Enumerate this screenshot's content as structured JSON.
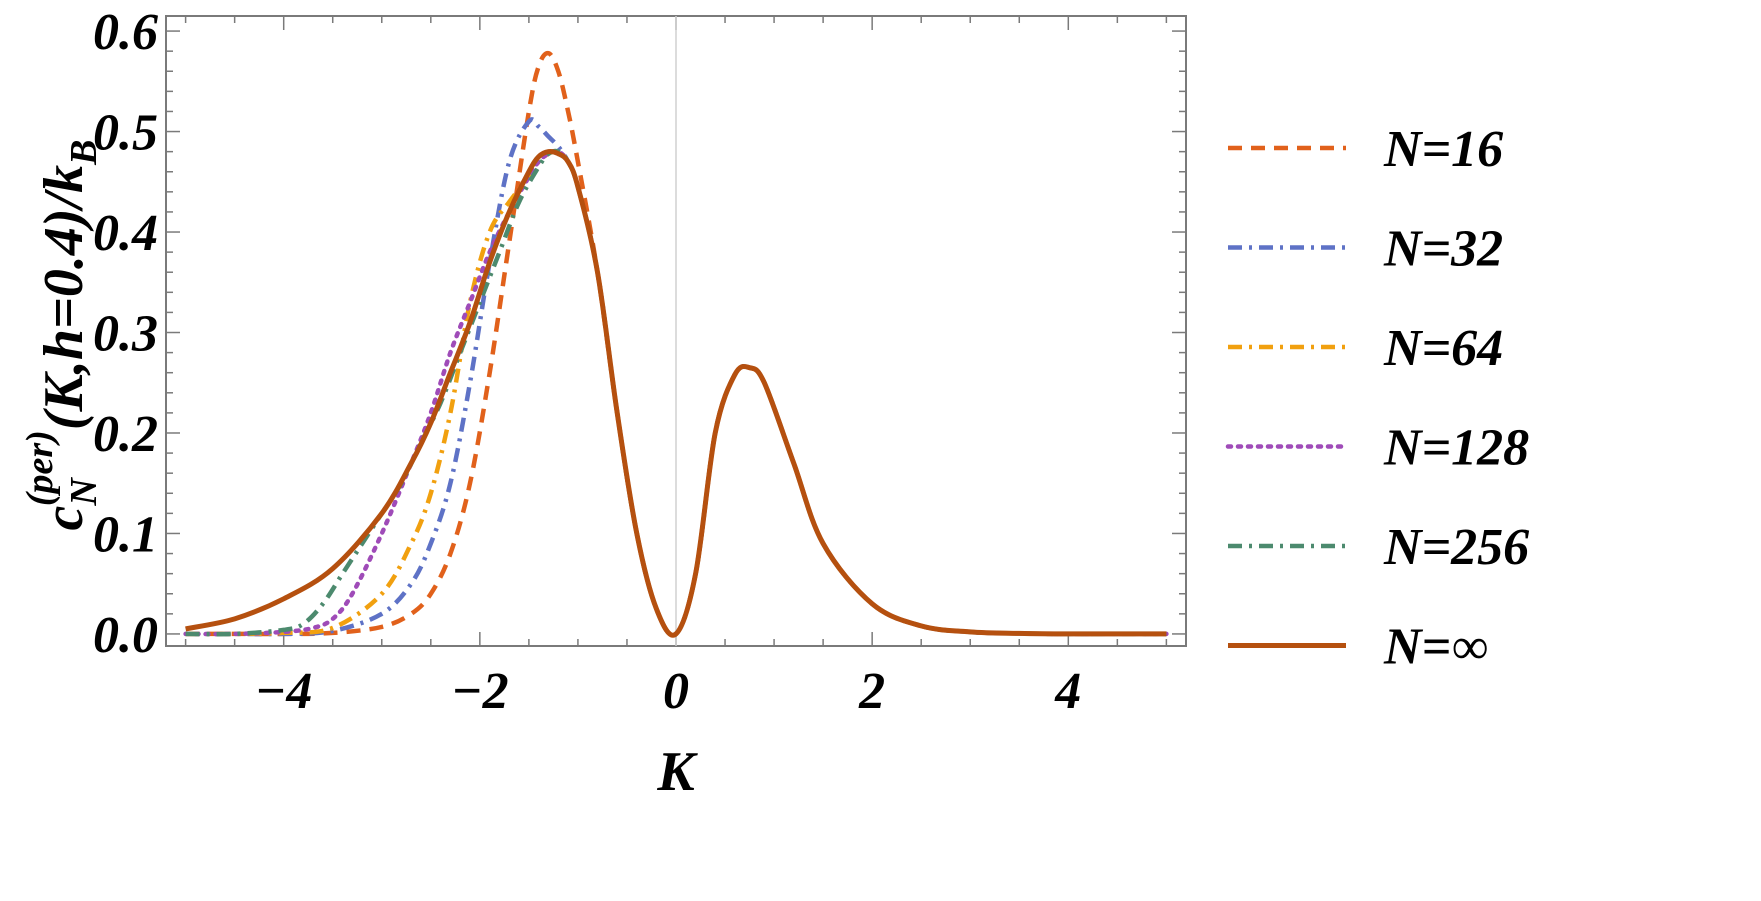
{
  "chart_data": {
    "type": "line",
    "title": "",
    "xlabel": "K",
    "ylabel": "c_N^(per)(K,h=0.4)/k_B",
    "ylabel_parts": {
      "base": "c",
      "sub": "N",
      "sup": "(per)",
      "rest": "(K,h=0.4)/k",
      "rest_sub": "B"
    },
    "xlim": [
      -5.2,
      5.2
    ],
    "ylim": [
      -0.012,
      0.615
    ],
    "xticks": [
      -4,
      -2,
      0,
      2,
      4
    ],
    "xtick_labels": [
      "−4",
      "−2",
      "0",
      "2",
      "4"
    ],
    "yticks": [
      0.0,
      0.1,
      0.2,
      0.3,
      0.4,
      0.5,
      0.6
    ],
    "ytick_labels": [
      "0.0",
      "0.1",
      "0.2",
      "0.3",
      "0.4",
      "0.5",
      "0.6"
    ],
    "grid": false,
    "legend_position": "right",
    "series": [
      {
        "name": "N=16",
        "color": "#E1611B",
        "dash": "dashed",
        "x": [
          -5.0,
          -4.5,
          -4.0,
          -3.5,
          -3.0,
          -2.7,
          -2.5,
          -2.3,
          -2.1,
          -1.9,
          -1.7,
          -1.5,
          -1.4,
          -1.3,
          -1.2,
          -1.1,
          -1.0,
          -0.8,
          -0.6,
          -0.4,
          -0.2,
          0.0,
          0.2,
          0.4,
          0.6,
          0.75,
          0.9,
          1.2,
          1.5,
          2.0,
          2.5,
          3.0,
          3.5,
          4.0,
          4.5,
          5.0
        ],
        "y": [
          0.0,
          0.0,
          0.0,
          0.001,
          0.007,
          0.02,
          0.04,
          0.08,
          0.15,
          0.26,
          0.39,
          0.52,
          0.565,
          0.578,
          0.56,
          0.52,
          0.47,
          0.36,
          0.22,
          0.1,
          0.025,
          0.0,
          0.06,
          0.2,
          0.258,
          0.265,
          0.25,
          0.17,
          0.09,
          0.03,
          0.008,
          0.002,
          0.0005,
          0.0,
          0.0,
          0.0
        ]
      },
      {
        "name": "N=32",
        "color": "#5E72C6",
        "dash": "dashdot",
        "x": [
          -5.0,
          -4.5,
          -4.0,
          -3.5,
          -3.0,
          -2.7,
          -2.5,
          -2.3,
          -2.1,
          -1.9,
          -1.7,
          -1.5,
          -1.4,
          -1.3,
          -1.2,
          -1.1,
          -1.0,
          -0.8,
          -0.6,
          -0.4,
          -0.2,
          0.0,
          0.2,
          0.4,
          0.6,
          0.75,
          0.9,
          1.2,
          1.5,
          2.0,
          2.5,
          3.0,
          3.5,
          4.0,
          4.5,
          5.0
        ],
        "y": [
          0.0,
          0.0,
          0.0,
          0.003,
          0.02,
          0.05,
          0.09,
          0.15,
          0.25,
          0.37,
          0.47,
          0.51,
          0.505,
          0.495,
          0.485,
          0.47,
          0.445,
          0.36,
          0.22,
          0.1,
          0.025,
          0.0,
          0.06,
          0.2,
          0.258,
          0.265,
          0.25,
          0.17,
          0.09,
          0.03,
          0.008,
          0.002,
          0.0005,
          0.0,
          0.0,
          0.0
        ]
      },
      {
        "name": "N=64",
        "color": "#F1A00F",
        "dash": "dashdot",
        "x": [
          -5.0,
          -4.5,
          -4.0,
          -3.5,
          -3.0,
          -2.7,
          -2.5,
          -2.3,
          -2.1,
          -1.9,
          -1.7,
          -1.5,
          -1.4,
          -1.3,
          -1.2,
          -1.1,
          -1.0,
          -0.8,
          -0.6,
          -0.4,
          -0.2,
          0.0,
          0.2,
          0.4,
          0.6,
          0.75,
          0.9,
          1.2,
          1.5,
          2.0,
          2.5,
          3.0,
          3.5,
          4.0,
          4.5,
          5.0
        ],
        "y": [
          0.0,
          0.0,
          0.001,
          0.006,
          0.04,
          0.09,
          0.14,
          0.22,
          0.33,
          0.4,
          0.43,
          0.455,
          0.47,
          0.478,
          0.48,
          0.47,
          0.445,
          0.36,
          0.22,
          0.1,
          0.025,
          0.0,
          0.06,
          0.2,
          0.258,
          0.265,
          0.25,
          0.17,
          0.09,
          0.03,
          0.008,
          0.002,
          0.0005,
          0.0,
          0.0,
          0.0
        ]
      },
      {
        "name": "N=128",
        "color": "#9F4BB8",
        "dash": "dotted",
        "x": [
          -5.0,
          -4.5,
          -4.0,
          -3.7,
          -3.5,
          -3.3,
          -3.0,
          -2.7,
          -2.5,
          -2.3,
          -2.1,
          -1.9,
          -1.7,
          -1.5,
          -1.4,
          -1.3,
          -1.2,
          -1.1,
          -1.0,
          -0.8,
          -0.6,
          -0.4,
          -0.2,
          0.0,
          0.2,
          0.4,
          0.6,
          0.75,
          0.9,
          1.2,
          1.5,
          2.0,
          2.5,
          3.0,
          3.5,
          4.0,
          4.5,
          5.0
        ],
        "y": [
          0.0,
          0.0,
          0.002,
          0.006,
          0.015,
          0.04,
          0.1,
          0.17,
          0.22,
          0.28,
          0.33,
          0.38,
          0.42,
          0.455,
          0.47,
          0.478,
          0.48,
          0.47,
          0.445,
          0.36,
          0.22,
          0.1,
          0.025,
          0.0,
          0.06,
          0.2,
          0.258,
          0.265,
          0.25,
          0.17,
          0.09,
          0.03,
          0.008,
          0.002,
          0.0005,
          0.0,
          0.0,
          0.0
        ]
      },
      {
        "name": "N=256",
        "color": "#4C8A6E",
        "dash": "dashdot",
        "x": [
          -5.0,
          -4.5,
          -4.0,
          -3.8,
          -3.6,
          -3.4,
          -3.2,
          -3.0,
          -2.8,
          -2.6,
          -2.4,
          -2.2,
          -2.0,
          -1.8,
          -1.6,
          -1.4,
          -1.3,
          -1.2,
          -1.1,
          -1.0,
          -0.8,
          -0.6,
          -0.4,
          -0.2,
          0.0,
          0.2,
          0.4,
          0.6,
          0.75,
          0.9,
          1.2,
          1.5,
          2.0,
          2.5,
          3.0,
          3.5,
          4.0,
          4.5,
          5.0
        ],
        "y": [
          0.0,
          0.0,
          0.004,
          0.01,
          0.03,
          0.06,
          0.09,
          0.12,
          0.15,
          0.19,
          0.23,
          0.28,
          0.33,
          0.38,
          0.43,
          0.465,
          0.478,
          0.48,
          0.47,
          0.445,
          0.36,
          0.22,
          0.1,
          0.025,
          0.0,
          0.06,
          0.2,
          0.258,
          0.265,
          0.25,
          0.17,
          0.09,
          0.03,
          0.008,
          0.002,
          0.0005,
          0.0,
          0.0,
          0.0
        ]
      },
      {
        "name": "N=∞",
        "color": "#B5500F",
        "dash": "solid",
        "x": [
          -5.0,
          -4.5,
          -4.0,
          -3.5,
          -3.0,
          -2.7,
          -2.5,
          -2.3,
          -2.1,
          -1.9,
          -1.7,
          -1.5,
          -1.4,
          -1.3,
          -1.2,
          -1.1,
          -1.0,
          -0.8,
          -0.6,
          -0.4,
          -0.2,
          0.0,
          0.2,
          0.4,
          0.6,
          0.75,
          0.9,
          1.2,
          1.5,
          2.0,
          2.5,
          3.0,
          3.5,
          4.0,
          4.5,
          5.0
        ],
        "y": [
          0.005,
          0.015,
          0.035,
          0.065,
          0.12,
          0.17,
          0.21,
          0.26,
          0.31,
          0.37,
          0.42,
          0.46,
          0.475,
          0.48,
          0.478,
          0.47,
          0.445,
          0.36,
          0.22,
          0.1,
          0.025,
          0.0,
          0.06,
          0.2,
          0.258,
          0.265,
          0.25,
          0.17,
          0.09,
          0.03,
          0.008,
          0.002,
          0.0005,
          0.0,
          0.0,
          0.0
        ]
      }
    ]
  }
}
